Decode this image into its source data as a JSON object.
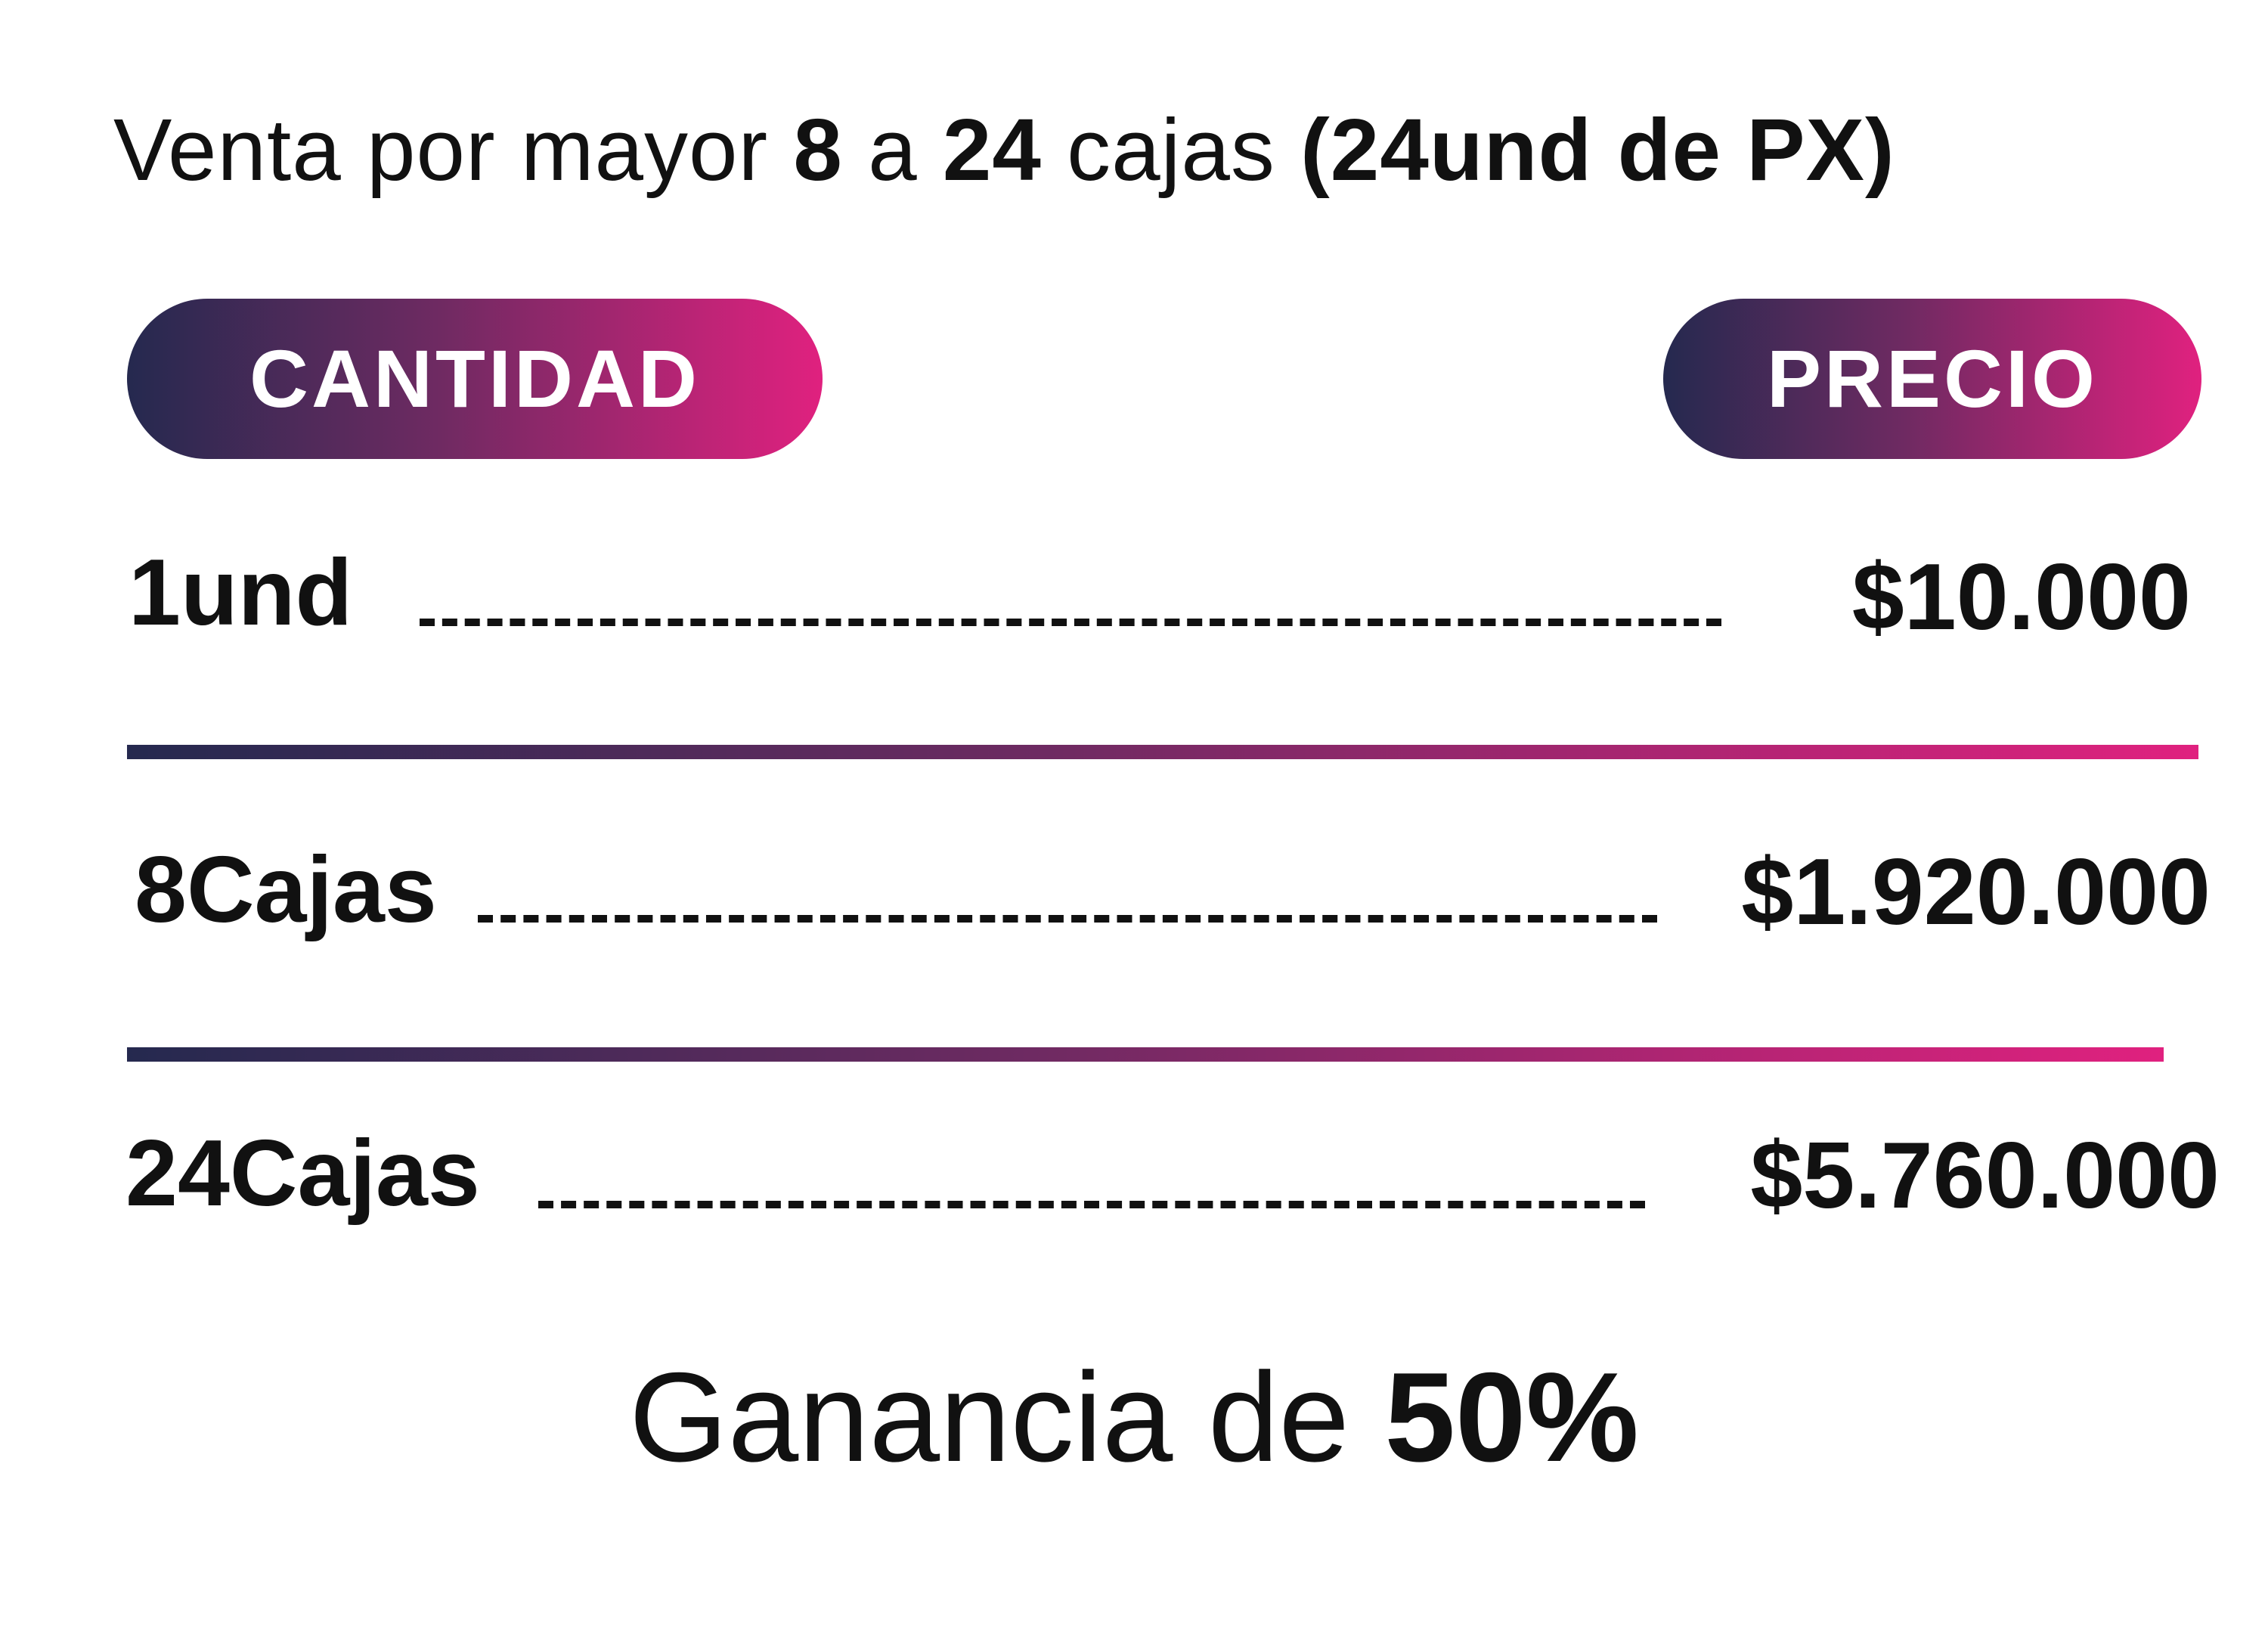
{
  "headline": {
    "part1": "Venta por mayor ",
    "from": "8",
    "sep": " a ",
    "to": "24",
    "part2": " cajas ",
    "note": "(24und de PX)"
  },
  "header": {
    "quantity_label": "CANTIDAD",
    "price_label": "PRECIO"
  },
  "rows": [
    {
      "quantity": "1und",
      "price": "$10.000"
    },
    {
      "quantity": "8Cajas",
      "price": "$1.920.000"
    },
    {
      "quantity": "24Cajas",
      "price": "$5.760.000"
    }
  ],
  "footer": {
    "text": "Ganancia de ",
    "value": "50%"
  },
  "colors": {
    "gradient_start": "#25294f",
    "gradient_end": "#e0217f",
    "text": "#111111"
  }
}
